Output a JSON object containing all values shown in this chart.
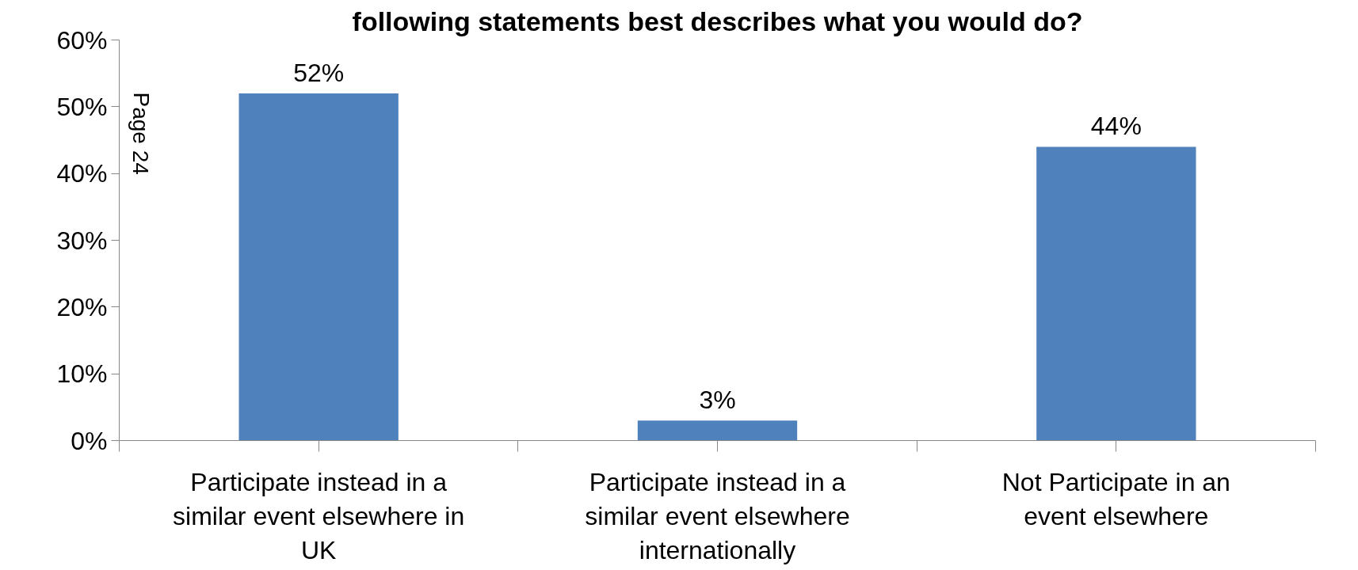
{
  "chart_data": {
    "type": "bar",
    "title": "following statements best describes what you would do?",
    "categories": [
      "Participate instead in a similar event elsewhere in UK",
      "Participate instead in a similar event elsewhere internationally",
      "Not Participate in an event elsewhere"
    ],
    "values": [
      52,
      3,
      44
    ],
    "color": "#4f81bd",
    "value_labels": [
      "52%",
      "3%",
      "44%"
    ],
    "ylim": [
      0,
      60
    ],
    "yticks": [
      {
        "value": 0,
        "label": "0%"
      },
      {
        "value": 10,
        "label": "10%"
      },
      {
        "value": 20,
        "label": "20%"
      },
      {
        "value": 30,
        "label": "30%"
      },
      {
        "value": 40,
        "label": "40%"
      },
      {
        "value": 50,
        "label": "50%"
      },
      {
        "value": 60,
        "label": "60%"
      }
    ],
    "grid": false,
    "annotations": [
      "Page 24"
    ]
  }
}
